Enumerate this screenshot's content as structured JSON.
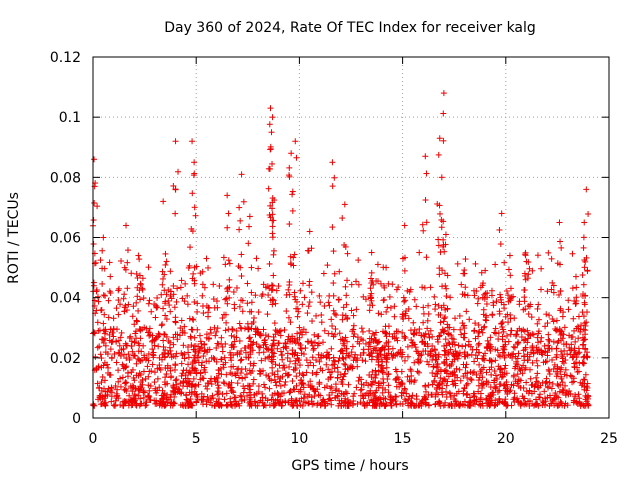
{
  "chart_data": {
    "type": "scatter",
    "title": "Day 360 of 2024, Rate Of TEC Index for receiver kalg",
    "xlabel": "GPS time / hours",
    "ylabel": "ROTI / TECUs",
    "xlim": [
      0,
      25
    ],
    "ylim": [
      0,
      0.12
    ],
    "xticks": [
      0,
      5,
      10,
      15,
      20,
      25
    ],
    "yticks": [
      0,
      0.02,
      0.04,
      0.06,
      0.08,
      0.1,
      0.12
    ],
    "xtick_labels": [
      "0",
      "5",
      "10",
      "15",
      "20",
      "25"
    ],
    "ytick_labels": [
      "0",
      "0.02",
      "0.04",
      "0.06",
      "0.08",
      "0.1",
      "0.12"
    ],
    "grid": true,
    "marker": "+",
    "color": "#ee0000",
    "series": [
      {
        "name": "ROTI",
        "x_range": [
          0,
          24
        ],
        "baseline_band": [
          0.004,
          0.03
        ],
        "peaks": [
          {
            "x": 0.05,
            "y": 0.086
          },
          {
            "x": 0.08,
            "y": 0.077
          },
          {
            "x": 0.5,
            "y": 0.06
          },
          {
            "x": 1.6,
            "y": 0.064
          },
          {
            "x": 2.2,
            "y": 0.054
          },
          {
            "x": 3.4,
            "y": 0.072
          },
          {
            "x": 4.0,
            "y": 0.092
          },
          {
            "x": 4.8,
            "y": 0.092
          },
          {
            "x": 4.9,
            "y": 0.085
          },
          {
            "x": 5.5,
            "y": 0.053
          },
          {
            "x": 6.5,
            "y": 0.074
          },
          {
            "x": 7.2,
            "y": 0.081
          },
          {
            "x": 7.6,
            "y": 0.067
          },
          {
            "x": 8.6,
            "y": 0.103
          },
          {
            "x": 8.7,
            "y": 0.1
          },
          {
            "x": 8.65,
            "y": 0.095
          },
          {
            "x": 9.6,
            "y": 0.088
          },
          {
            "x": 9.8,
            "y": 0.092
          },
          {
            "x": 10.5,
            "y": 0.062
          },
          {
            "x": 11.6,
            "y": 0.085
          },
          {
            "x": 12.2,
            "y": 0.071
          },
          {
            "x": 13.5,
            "y": 0.055
          },
          {
            "x": 14.2,
            "y": 0.05
          },
          {
            "x": 15.1,
            "y": 0.064
          },
          {
            "x": 16.1,
            "y": 0.087
          },
          {
            "x": 16.8,
            "y": 0.093
          },
          {
            "x": 17.0,
            "y": 0.108
          },
          {
            "x": 16.9,
            "y": 0.08
          },
          {
            "x": 17.1,
            "y": 0.061
          },
          {
            "x": 18.0,
            "y": 0.048
          },
          {
            "x": 19.0,
            "y": 0.049
          },
          {
            "x": 19.8,
            "y": 0.068
          },
          {
            "x": 20.2,
            "y": 0.054
          },
          {
            "x": 21.0,
            "y": 0.052
          },
          {
            "x": 22.6,
            "y": 0.065
          },
          {
            "x": 23.4,
            "y": 0.047
          },
          {
            "x": 23.8,
            "y": 0.065
          },
          {
            "x": 23.9,
            "y": 0.076
          }
        ]
      }
    ]
  }
}
